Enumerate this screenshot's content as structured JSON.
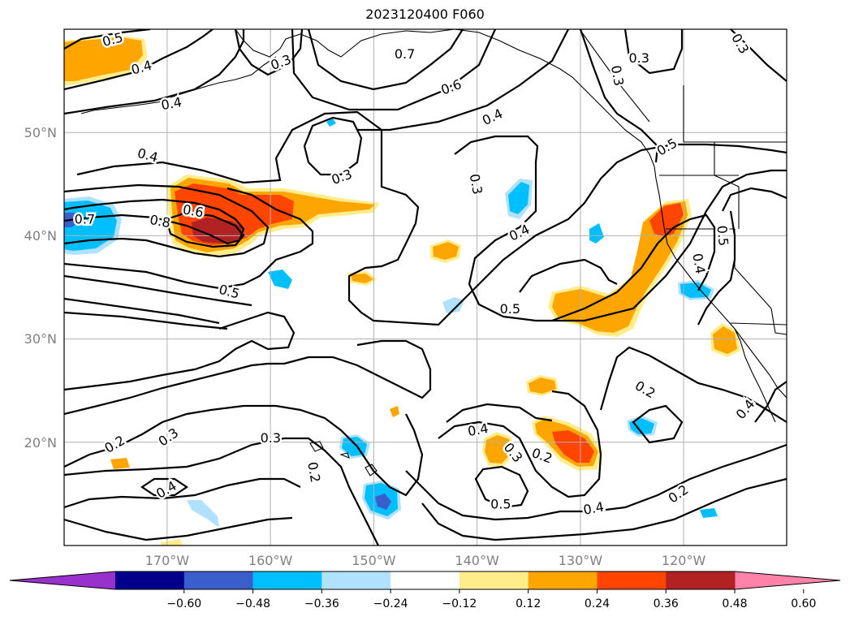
{
  "title": "2023120400 F060",
  "map": {
    "type": "contour-map",
    "region": "North Pacific",
    "lon_range": [
      -180,
      -110
    ],
    "lat_range": [
      10,
      60
    ],
    "lat_ticks": [
      {
        "value": 50,
        "label": "50°N"
      },
      {
        "value": 40,
        "label": "40°N"
      },
      {
        "value": 30,
        "label": "30°N"
      },
      {
        "value": 20,
        "label": "20°N"
      }
    ],
    "lon_ticks": [
      {
        "value": -170,
        "label": "170°W"
      },
      {
        "value": -160,
        "label": "160°W"
      },
      {
        "value": -150,
        "label": "150°W"
      },
      {
        "value": -140,
        "label": "140°W"
      },
      {
        "value": -130,
        "label": "130°W"
      },
      {
        "value": -120,
        "label": "120°W"
      }
    ],
    "grid": true,
    "contour_labels": [
      {
        "text": "0.5",
        "lon": -175.3,
        "lat": 59.0,
        "rot": -15
      },
      {
        "text": "0.4",
        "lon": -172.5,
        "lat": 56.3,
        "rot": -15
      },
      {
        "text": "0.4",
        "lon": -169.6,
        "lat": 52.8,
        "rot": -10
      },
      {
        "text": "0.3",
        "lon": -159.0,
        "lat": 56.8,
        "rot": -20
      },
      {
        "text": "0.7",
        "lon": -147.0,
        "lat": 57.6,
        "rot": 0
      },
      {
        "text": "0.6",
        "lon": -142.5,
        "lat": 54.4,
        "rot": -20
      },
      {
        "text": "0.4",
        "lon": -138.5,
        "lat": 51.5,
        "rot": -25
      },
      {
        "text": "0.3",
        "lon": -126.4,
        "lat": 55.5,
        "rot": 80
      },
      {
        "text": "0.3",
        "lon": -124.3,
        "lat": 57.2,
        "rot": 0
      },
      {
        "text": "0.3",
        "lon": -114.5,
        "lat": 58.6,
        "rot": 60
      },
      {
        "text": "0.5",
        "lon": -121.6,
        "lat": 48.6,
        "rot": -30
      },
      {
        "text": "0.4",
        "lon": -171.9,
        "lat": 47.8,
        "rot": 15
      },
      {
        "text": "0.3",
        "lon": -153.1,
        "lat": 45.7,
        "rot": -20
      },
      {
        "text": "0.3",
        "lon": -140.1,
        "lat": 45.0,
        "rot": 80
      },
      {
        "text": "0.7",
        "lon": -178.0,
        "lat": 41.6,
        "rot": 0
      },
      {
        "text": "0.8",
        "lon": -170.7,
        "lat": 41.4,
        "rot": 10
      },
      {
        "text": "0.6",
        "lon": -167.5,
        "lat": 42.4,
        "rot": 10
      },
      {
        "text": "0.4",
        "lon": -135.9,
        "lat": 40.3,
        "rot": -25
      },
      {
        "text": "0.5",
        "lon": -116.2,
        "lat": 40.0,
        "rot": 85
      },
      {
        "text": "0.4",
        "lon": -118.5,
        "lat": 37.3,
        "rot": 80
      },
      {
        "text": "0.5",
        "lon": -164.0,
        "lat": 34.6,
        "rot": 15
      },
      {
        "text": "0.5",
        "lon": -136.8,
        "lat": 32.9,
        "rot": 0
      },
      {
        "text": "0.2",
        "lon": -123.7,
        "lat": 25.1,
        "rot": 30
      },
      {
        "text": "0.4",
        "lon": -114.0,
        "lat": 23.2,
        "rot": -50
      },
      {
        "text": "0.3",
        "lon": -169.9,
        "lat": 20.5,
        "rot": -35
      },
      {
        "text": "0.2",
        "lon": -175.1,
        "lat": 19.8,
        "rot": -30
      },
      {
        "text": "0.3",
        "lon": -160.0,
        "lat": 20.4,
        "rot": 0
      },
      {
        "text": "0.2",
        "lon": -155.8,
        "lat": 17.1,
        "rot": 80
      },
      {
        "text": "0.4",
        "lon": -139.9,
        "lat": 21.2,
        "rot": -10
      },
      {
        "text": "0.3",
        "lon": -136.5,
        "lat": 19.0,
        "rot": 50
      },
      {
        "text": "0.2",
        "lon": -133.7,
        "lat": 18.7,
        "rot": 20
      },
      {
        "text": "0.5",
        "lon": -137.7,
        "lat": 14.0,
        "rot": 0
      },
      {
        "text": "0.4",
        "lon": -128.7,
        "lat": 13.6,
        "rot": -10
      },
      {
        "text": "0.2",
        "lon": -120.5,
        "lat": 15.0,
        "rot": -35
      },
      {
        "text": "0.4",
        "lon": -170.1,
        "lat": 15.4,
        "rot": -30
      }
    ]
  },
  "colorbar": {
    "ticks": [
      "−0.60",
      "−0.48",
      "−0.36",
      "−0.24",
      "−0.12",
      "0.12",
      "0.24",
      "0.36",
      "0.48",
      "0.60"
    ],
    "colors": [
      "#9932cc",
      "#00008b",
      "#3a5fcd",
      "#00bfff",
      "#b0e2ff",
      "#ffffff",
      "#ffec8b",
      "#ffa500",
      "#ff4500",
      "#b22222",
      "#ff82ab"
    ]
  }
}
